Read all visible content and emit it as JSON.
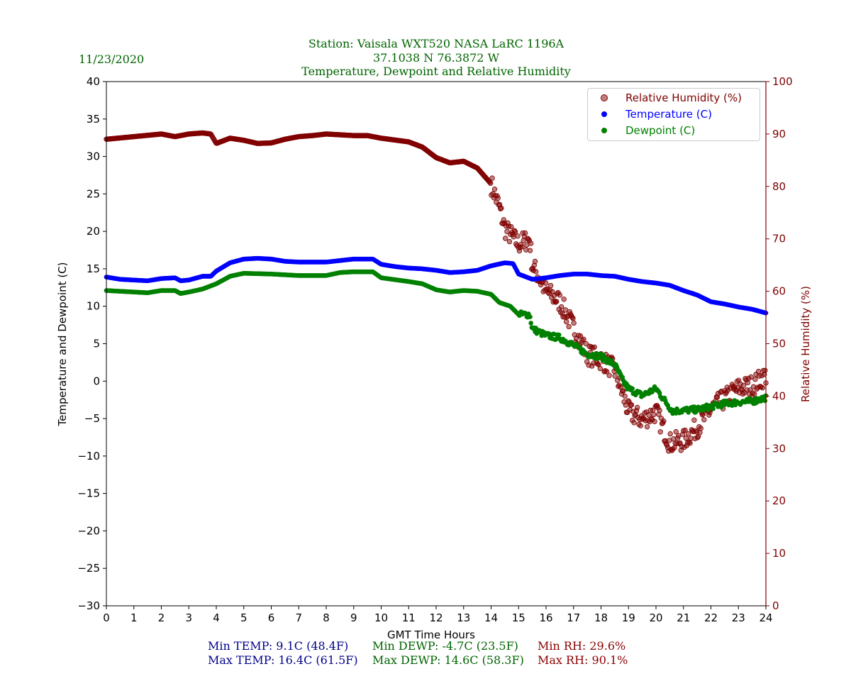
{
  "header": {
    "date": "11/23/2020",
    "title_line1": "Station:  Vaisala WXT520  NASA LaRC 1196A",
    "title_line2": "37.1038 N 76.3872 W",
    "title_line3": "Temperature, Dewpoint and Relative Humidity"
  },
  "stats": {
    "min_temp": "Min TEMP: 9.1C (48.4F)",
    "max_temp": "Max TEMP: 16.4C (61.5F)",
    "min_dewp": "Min DEWP: -4.7C (23.5F)",
    "max_dewp": "Max DEWP: 14.6C (58.3F)",
    "min_rh": "Min RH: 29.6%",
    "max_rh": "Max RH: 90.1%"
  },
  "colors": {
    "title": "#006400",
    "temp": "#0000ff",
    "dewp": "#008000",
    "rh": "#800000",
    "stat_temp": "#00008b"
  },
  "chart_data": {
    "type": "scatter",
    "xlabel": "GMT Time Hours",
    "ylabel": "Temperature and Dewpoint (C)",
    "y2label": "Relative Humidity (%)",
    "xlim": [
      0,
      24
    ],
    "ylim": [
      -30,
      40
    ],
    "y2lim": [
      0,
      100
    ],
    "xticks": [
      0,
      1,
      2,
      3,
      4,
      5,
      6,
      7,
      8,
      9,
      10,
      11,
      12,
      13,
      14,
      15,
      16,
      17,
      18,
      19,
      20,
      21,
      22,
      23,
      24
    ],
    "yticks": [
      -30,
      -25,
      -20,
      -15,
      -10,
      -5,
      0,
      5,
      10,
      15,
      20,
      25,
      30,
      35,
      40
    ],
    "y2ticks": [
      0,
      10,
      20,
      30,
      40,
      50,
      60,
      70,
      80,
      90,
      100
    ],
    "legend_position": "top-right",
    "legend": [
      "Relative Humidity (%)",
      "Temperature (C)",
      "Dewpoint (C)"
    ],
    "series": [
      {
        "name": "Relative Humidity (%)",
        "axis": "right",
        "color": "#800000",
        "x": [
          0,
          1,
          2,
          2.5,
          3,
          3.5,
          3.8,
          4,
          4.5,
          5,
          5.5,
          6,
          6.5,
          7,
          7.5,
          8,
          9,
          9.5,
          10,
          11,
          11.5,
          12,
          12.5,
          13,
          13.5,
          14,
          14.3,
          14.5,
          15,
          15.4,
          15.5,
          16,
          16.5,
          17,
          17.5,
          18,
          18.5,
          19,
          19.5,
          20,
          20.5,
          21,
          21.5,
          22,
          22.5,
          23,
          23.5,
          24
        ],
        "y": [
          89.0,
          89.5,
          90.0,
          89.5,
          90.0,
          90.2,
          90.0,
          88.2,
          89.2,
          88.8,
          88.2,
          88.3,
          89.0,
          89.5,
          89.7,
          90.0,
          89.7,
          89.7,
          89.2,
          88.5,
          87.5,
          85.5,
          84.5,
          84.8,
          83.5,
          80.5,
          76,
          72,
          69,
          70,
          65,
          60,
          58,
          53,
          48,
          47,
          45,
          37,
          35.5,
          37,
          31,
          31.5,
          34,
          37.5,
          39.5,
          41.5,
          42,
          44
        ]
      },
      {
        "name": "Temperature (C)",
        "axis": "left",
        "color": "#0000ff",
        "x": [
          0,
          0.5,
          1,
          1.5,
          2,
          2.5,
          2.7,
          3,
          3.5,
          3.8,
          4,
          4.5,
          5,
          5.5,
          6,
          6.5,
          7,
          7.5,
          8,
          8.5,
          9,
          9.7,
          10,
          10.5,
          11,
          11.5,
          12,
          12.5,
          13,
          13.5,
          14,
          14.5,
          14.8,
          15,
          15.5,
          16,
          16.5,
          17,
          17.5,
          18,
          18.5,
          19,
          19.5,
          20,
          20.5,
          21,
          21.5,
          22,
          22.5,
          23,
          23.5,
          24
        ],
        "y": [
          13.9,
          13.6,
          13.5,
          13.4,
          13.7,
          13.8,
          13.4,
          13.5,
          14.0,
          14.0,
          14.7,
          15.8,
          16.3,
          16.4,
          16.3,
          16.0,
          15.9,
          15.9,
          15.9,
          16.1,
          16.3,
          16.3,
          15.6,
          15.3,
          15.1,
          15.0,
          14.8,
          14.5,
          14.6,
          14.8,
          15.4,
          15.8,
          15.7,
          14.3,
          13.6,
          13.8,
          14.1,
          14.3,
          14.3,
          14.1,
          14.0,
          13.6,
          13.3,
          13.1,
          12.8,
          12.1,
          11.5,
          10.6,
          10.3,
          9.9,
          9.6,
          9.1
        ]
      },
      {
        "name": "Dewpoint (C)",
        "axis": "left",
        "color": "#008000",
        "x": [
          0,
          1,
          1.5,
          2,
          2.5,
          2.7,
          3,
          3.5,
          4,
          4.5,
          5,
          6,
          7,
          8,
          8.5,
          9,
          9.7,
          10,
          11,
          11.5,
          12,
          12.5,
          13,
          13.5,
          14,
          14.3,
          14.7,
          15,
          15.4,
          15.5,
          16,
          16.5,
          17,
          17.5,
          18,
          18.5,
          18.8,
          19,
          19.5,
          20,
          20.3,
          20.6,
          21,
          21.5,
          22,
          22.5,
          23,
          23.5,
          24
        ],
        "y": [
          12.1,
          11.9,
          11.8,
          12.1,
          12.1,
          11.7,
          11.9,
          12.3,
          13.0,
          14.0,
          14.4,
          14.3,
          14.1,
          14.1,
          14.5,
          14.6,
          14.6,
          13.8,
          13.3,
          13.0,
          12.2,
          11.9,
          12.1,
          12.0,
          11.6,
          10.5,
          10.0,
          8.9,
          8.9,
          7.0,
          6.1,
          5.8,
          4.8,
          3.6,
          3.3,
          2.2,
          0,
          -1,
          -1.9,
          -1,
          -2.5,
          -4,
          -3.9,
          -3.8,
          -3.4,
          -3.0,
          -2.8,
          -2.7,
          -2.2
        ]
      }
    ]
  }
}
